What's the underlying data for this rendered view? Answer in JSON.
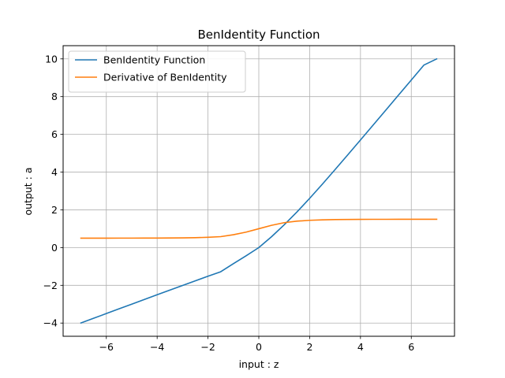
{
  "chart_data": {
    "type": "line",
    "title": "BenIdentity Function",
    "xlabel": "input : z",
    "ylabel": "output : a",
    "xlim": [
      -7.7,
      7.7
    ],
    "ylim": [
      -4.7,
      10.7
    ],
    "xticks": [
      -6,
      -4,
      -2,
      0,
      2,
      4,
      6
    ],
    "yticks": [
      -4,
      -2,
      0,
      2,
      4,
      6,
      8,
      10
    ],
    "xtick_labels": [
      "−6",
      "−4",
      "−2",
      "0",
      "2",
      "4",
      "6"
    ],
    "ytick_labels": [
      "−4",
      "−2",
      "0",
      "2",
      "4",
      "6",
      "8",
      "10"
    ],
    "grid": true,
    "legend_position": "top-left",
    "x": [
      -7,
      -6.5,
      -6,
      -5.5,
      -5,
      -4.5,
      -4,
      -3.5,
      -3,
      -2.5,
      -2,
      -1.5,
      -1,
      -0.5,
      0,
      0.5,
      1,
      1.5,
      2,
      2.5,
      3,
      3.5,
      4,
      4.5,
      5,
      5.5,
      6,
      6.5,
      7
    ],
    "series": [
      {
        "name": "BenIdentity Function",
        "color": "#1f77b4",
        "values": [
          -3.996,
          -3.746,
          -3.497,
          -3.247,
          -2.998,
          -2.749,
          -2.501,
          -2.253,
          -2.006,
          -1.761,
          -1.518,
          -1.281,
          -0.854,
          -0.434,
          0.0,
          0.574,
          1.207,
          1.887,
          2.608,
          3.36,
          4.131,
          4.914,
          5.703,
          6.496,
          7.29,
          8.085,
          8.88,
          9.676,
          10.0
        ]
      },
      {
        "name": "Derivative of BenIdentity",
        "color": "#ff7f0e",
        "values": [
          0.5,
          0.5,
          0.5,
          0.501,
          0.501,
          0.502,
          0.504,
          0.507,
          0.513,
          0.524,
          0.545,
          0.58,
          0.68,
          0.82,
          1.0,
          1.18,
          1.32,
          1.4,
          1.446,
          1.47,
          1.483,
          1.49,
          1.495,
          1.497,
          1.498,
          1.499,
          1.5,
          1.5,
          1.5
        ]
      }
    ]
  }
}
